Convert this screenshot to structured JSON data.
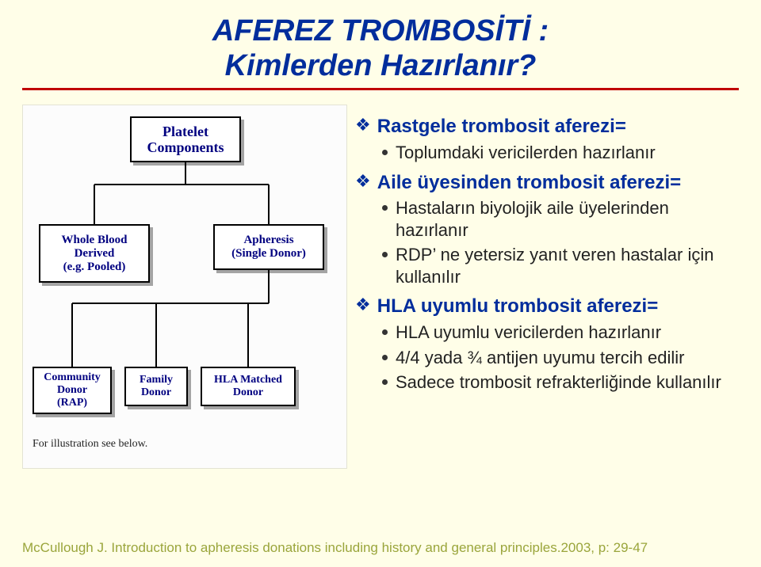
{
  "title_line1": "AFEREZ TROMBOSİTİ :",
  "title_line2": "Kimlerden Hazırlanır?",
  "diagram": {
    "top": "Platelet\nComponents",
    "mid_l": "Whole Blood\nDerived\n(e.g. Pooled)",
    "mid_r": "Apheresis\n(Single Donor)",
    "bot1": "Community\nDonor\n(RAP)",
    "bot2": "Family\nDonor",
    "bot3": "HLA Matched\nDonor",
    "note": "For illustration see below.",
    "node_border": "#000000",
    "node_text_color": "#000080",
    "node_bg": "#ffffff",
    "line_color": "#000000"
  },
  "bullets": [
    {
      "level": 1,
      "text": "Rastgele trombosit aferezi="
    },
    {
      "level": 2,
      "text": "Toplumdaki vericilerden hazırlanır"
    },
    {
      "level": 1,
      "text": "Aile üyesinden trombosit aferezi="
    },
    {
      "level": 2,
      "text": "Hastaların biyolojik aile üyelerinden hazırlanır"
    },
    {
      "level": 2,
      "text": "RDP’ ne yetersiz yanıt veren hastalar için kullanılır"
    },
    {
      "level": 1,
      "text": "HLA uyumlu trombosit aferezi="
    },
    {
      "level": 2,
      "text": "HLA uyumlu vericilerden hazırlanır"
    },
    {
      "level": 2,
      "text": "4/4 yada ¾ antijen uyumu tercih edilir"
    },
    {
      "level": 2,
      "text": "Sadece trombosit refrakterliğinde kullanılır"
    }
  ],
  "citation": "McCullough J. Introduction to apheresis donations including history and general principles.2003, p: 29-47",
  "colors": {
    "bg": "#fffee8",
    "title": "#002d9c",
    "rule": "#c00000",
    "body": "#222222",
    "cite": "#9aa53b"
  }
}
